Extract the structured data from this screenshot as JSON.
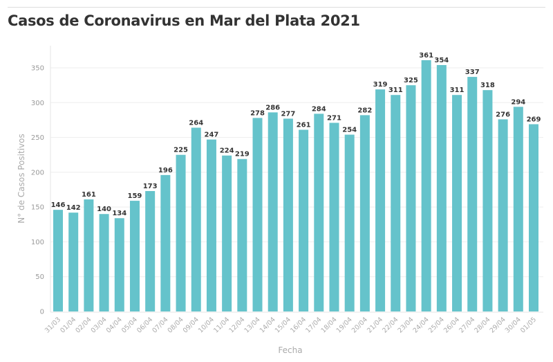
{
  "chart_data": {
    "type": "bar",
    "title": "Casos de Coronavirus en Mar del Plata 2021",
    "xlabel": "Fecha",
    "ylabel": "N° de Casos Positivos",
    "ylim": [
      0,
      380
    ],
    "yticks": [
      0,
      50,
      100,
      150,
      200,
      250,
      300,
      350
    ],
    "grid": true,
    "bar_color": "#65c3cb",
    "categories": [
      "31/03",
      "01/04",
      "02/04",
      "03/04",
      "04/04",
      "05/04",
      "06/04",
      "07/04",
      "08/04",
      "09/04",
      "10/04",
      "11/04",
      "12/04",
      "13/04",
      "14/04",
      "15/04",
      "16/04",
      "17/04",
      "18/04",
      "19/04",
      "20/04",
      "21/04",
      "22/04",
      "23/04",
      "24/04",
      "25/04",
      "26/04",
      "27/04",
      "28/04",
      "29/04",
      "30/04",
      "01/05"
    ],
    "values": [
      146,
      142,
      161,
      140,
      134,
      159,
      173,
      196,
      225,
      264,
      247,
      224,
      219,
      278,
      286,
      277,
      261,
      284,
      271,
      254,
      282,
      319,
      311,
      325,
      361,
      354,
      311,
      337,
      318,
      276,
      294,
      269
    ]
  }
}
